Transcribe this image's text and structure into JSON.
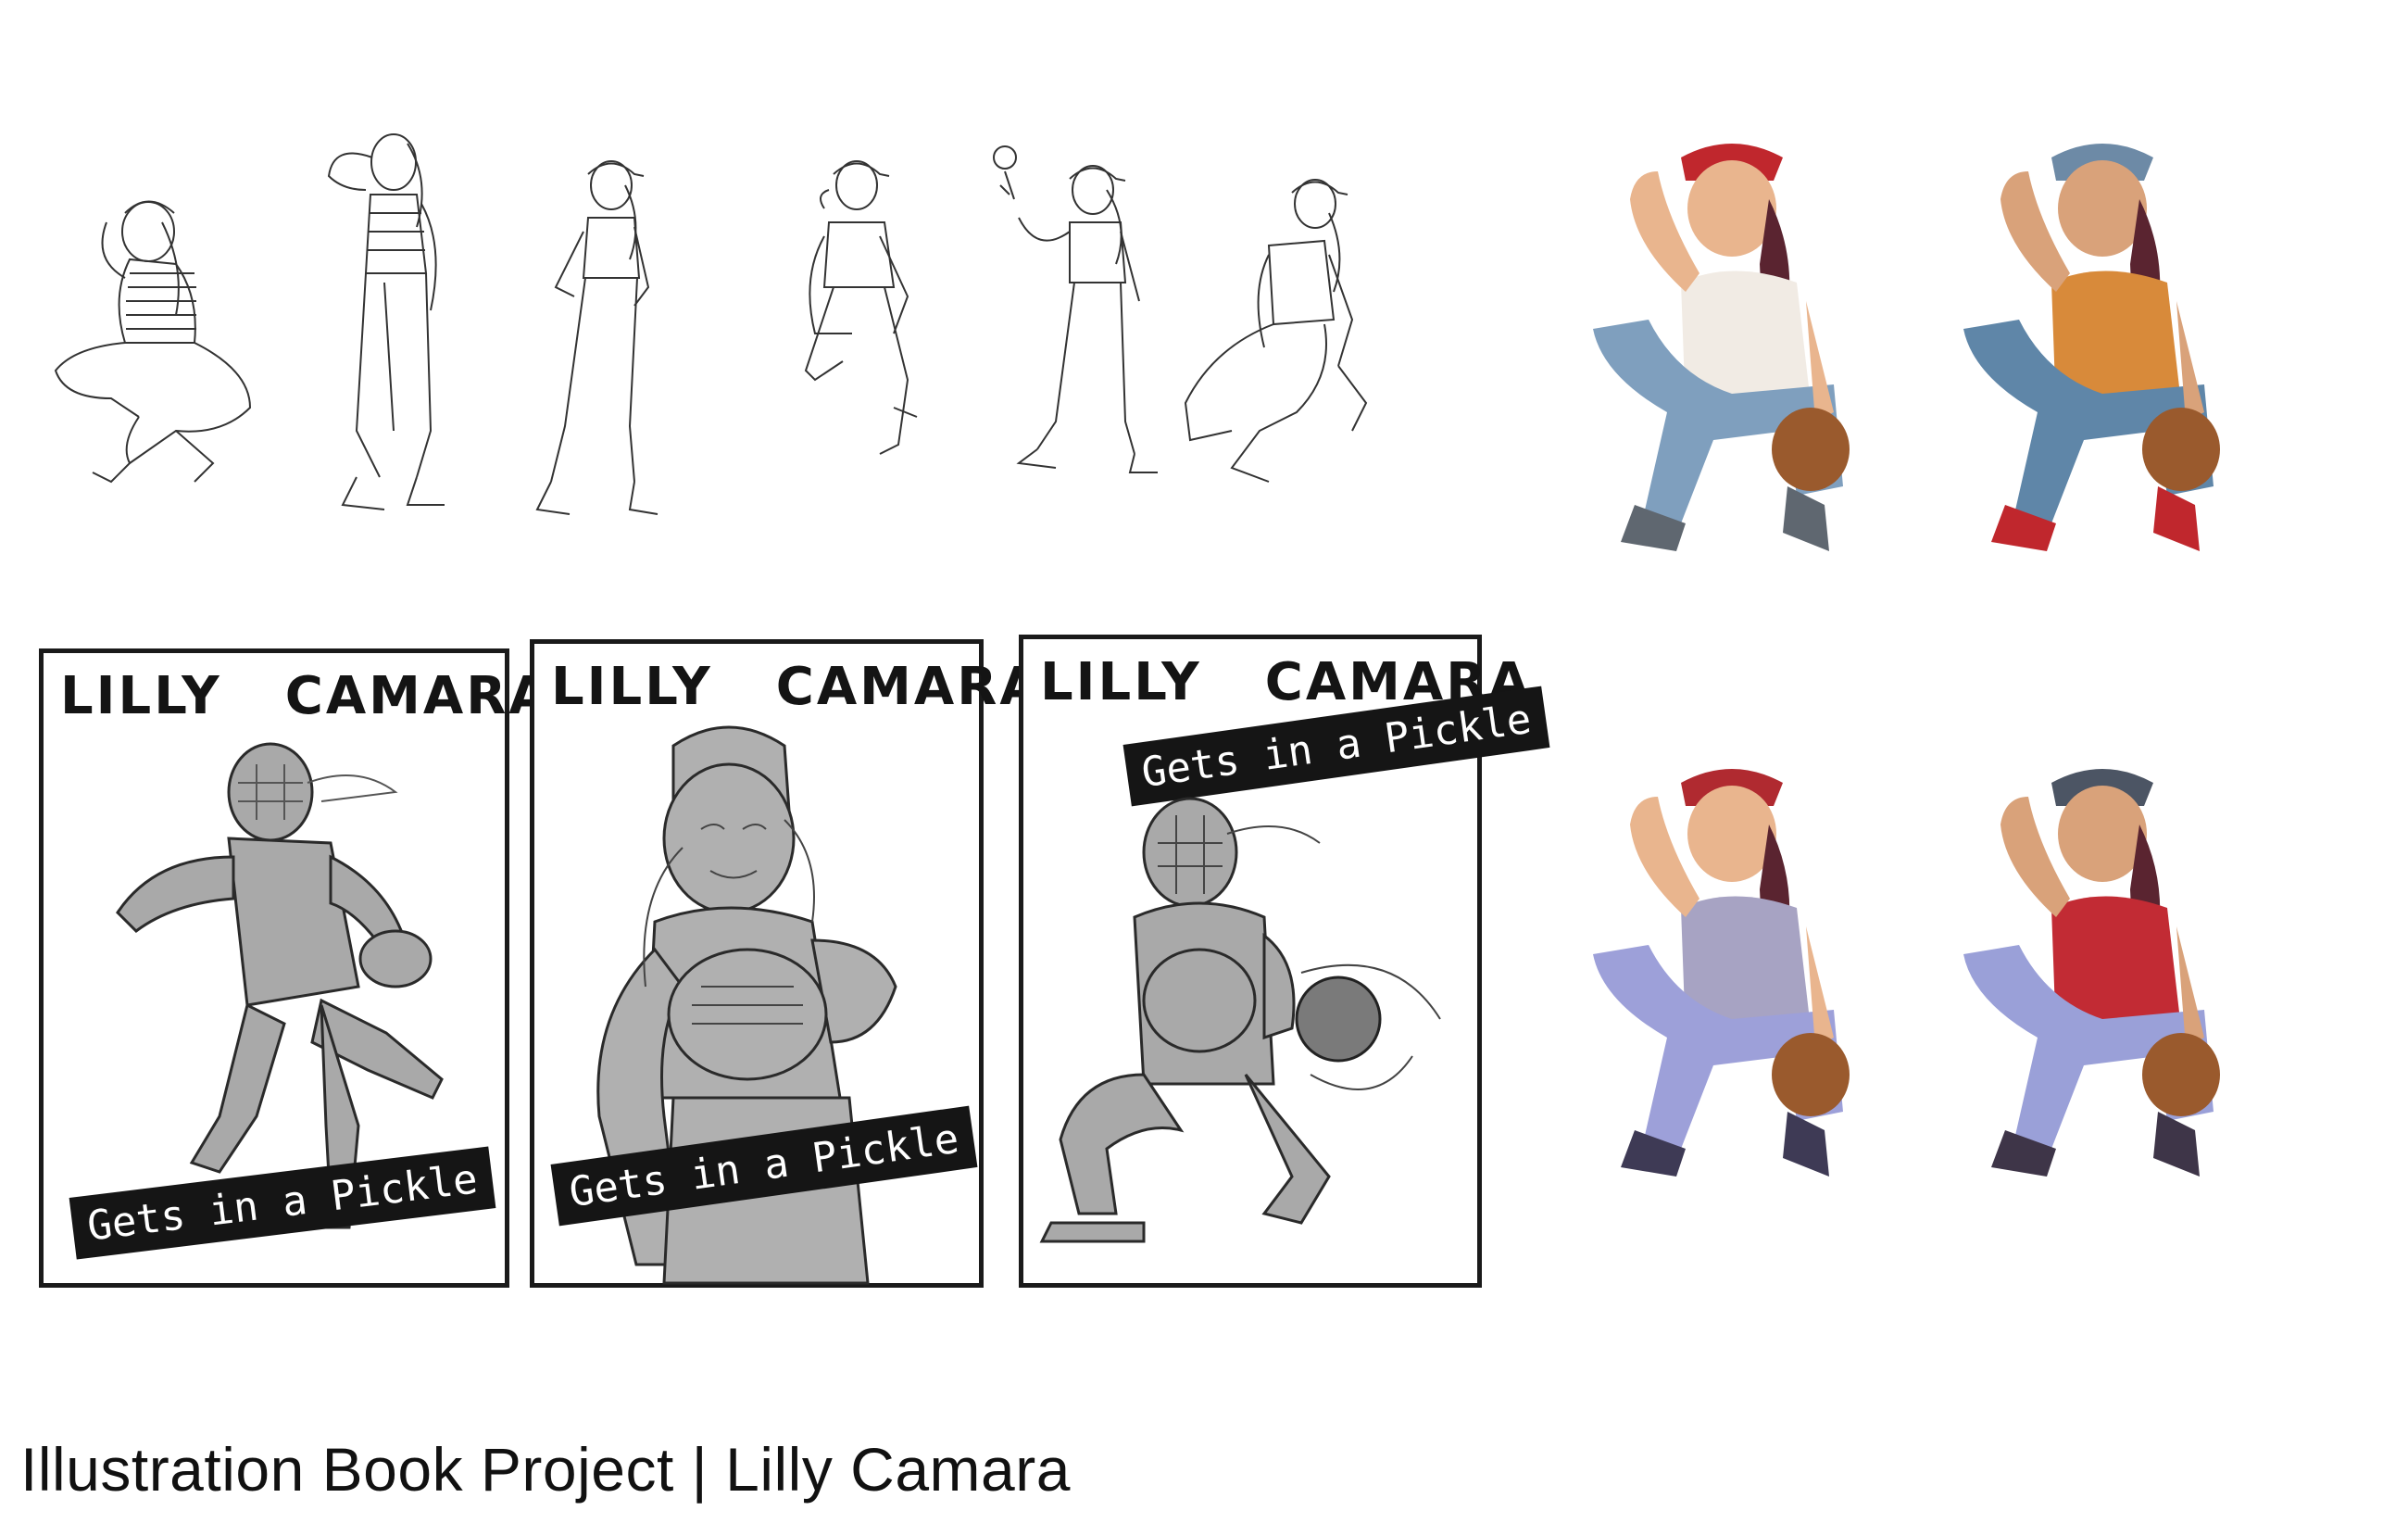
{
  "covers": [
    {
      "title_first": "LILLY",
      "title_last": "CAMARA",
      "subtitle": "Gets in a Pickle"
    },
    {
      "title_first": "LILLY",
      "title_last": "CAMARA",
      "subtitle": "Gets in a Pickle"
    },
    {
      "title_first": "LILLY",
      "title_last": "CAMARA",
      "subtitle": "Gets in a Pickle"
    }
  ],
  "caption": "Illustration Book Project | Lilly Camara",
  "character_variants": [
    {
      "cap": "#c0272d",
      "shirt": "#f1ebe4",
      "jeans": "#7f9fbe",
      "shoes": "#5f6770"
    },
    {
      "cap": "#6d8aa6",
      "shirt": "#d88a3a",
      "jeans": "#5f86a8",
      "shoes": "#c0272d"
    },
    {
      "cap": "#b02a30",
      "shirt": "#a7a3c3",
      "jeans": "#9da0d9",
      "shoes": "#3e3a55"
    },
    {
      "cap": "#4c5564",
      "shirt": "#c22b34",
      "jeans": "#9aa0d8",
      "shoes": "#3e3548"
    }
  ]
}
